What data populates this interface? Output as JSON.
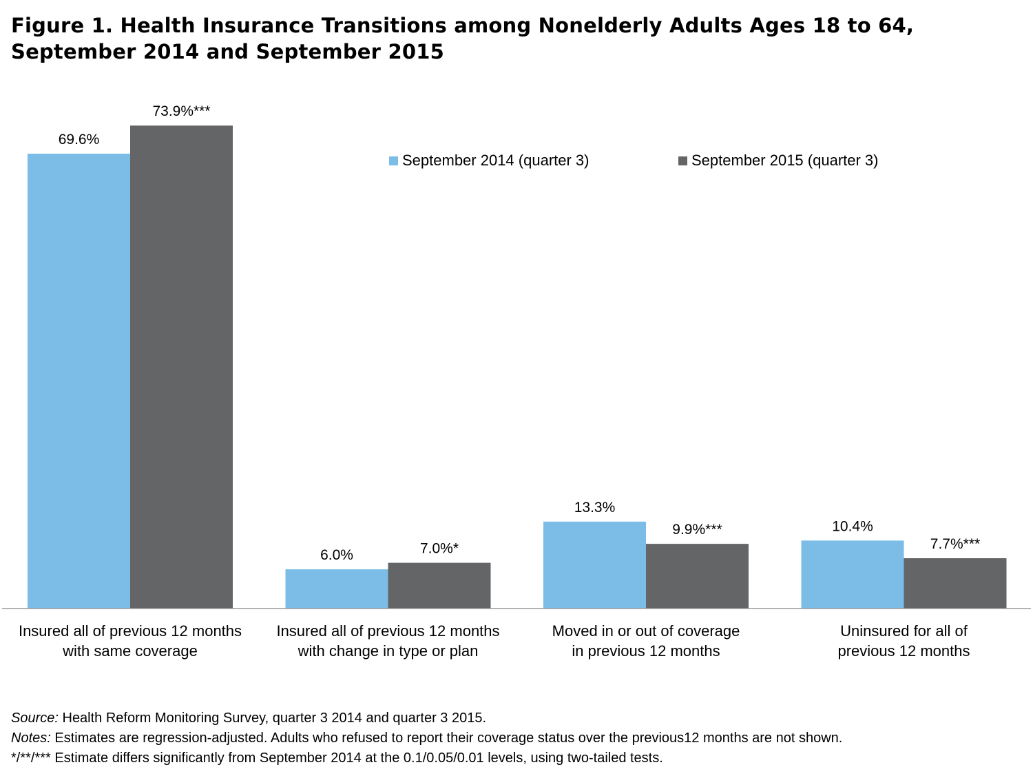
{
  "title": "Figure 1. Health Insurance Transitions among Nonelderly Adults Ages 18 to 64, September 2014 and September 2015",
  "chart_data": {
    "type": "bar",
    "categories": [
      [
        "Insured all of previous 12 months",
        "with same coverage"
      ],
      [
        "Insured all of previous 12 months",
        "with change in type or plan"
      ],
      [
        "Moved in or out of coverage",
        "in previous 12 months"
      ],
      [
        "Uninsured for all of",
        "previous 12 months"
      ]
    ],
    "series": [
      {
        "name": "September 2014 (quarter 3)",
        "color": "#7bbde6",
        "values": [
          69.6,
          6.0,
          13.3,
          10.4
        ],
        "labels": [
          "69.6%",
          "6.0%",
          "13.3%",
          "10.4%"
        ]
      },
      {
        "name": "September 2015 (quarter 3)",
        "color": "#646567",
        "values": [
          73.9,
          7.0,
          9.9,
          7.7
        ],
        "labels": [
          "73.9%***",
          "7.0%*",
          "9.9%***",
          "7.7%***"
        ]
      }
    ],
    "ylim": [
      0,
      80
    ],
    "grid": false,
    "legend": "top-right",
    "xlabel": "",
    "ylabel": ""
  },
  "notes": {
    "source_label": "Source:",
    "source_text": " Health Reform Monitoring Survey, quarter 3 2014 and quarter 3 2015.",
    "notes_label": "Notes:",
    "notes_text": " Estimates are regression-adjusted. Adults who refused to report their coverage status over the previous12 months are not shown.",
    "significance_text": "*/**/*** Estimate differs significantly from September 2014 at the 0.1/0.05/0.01 levels, using two-tailed tests."
  }
}
